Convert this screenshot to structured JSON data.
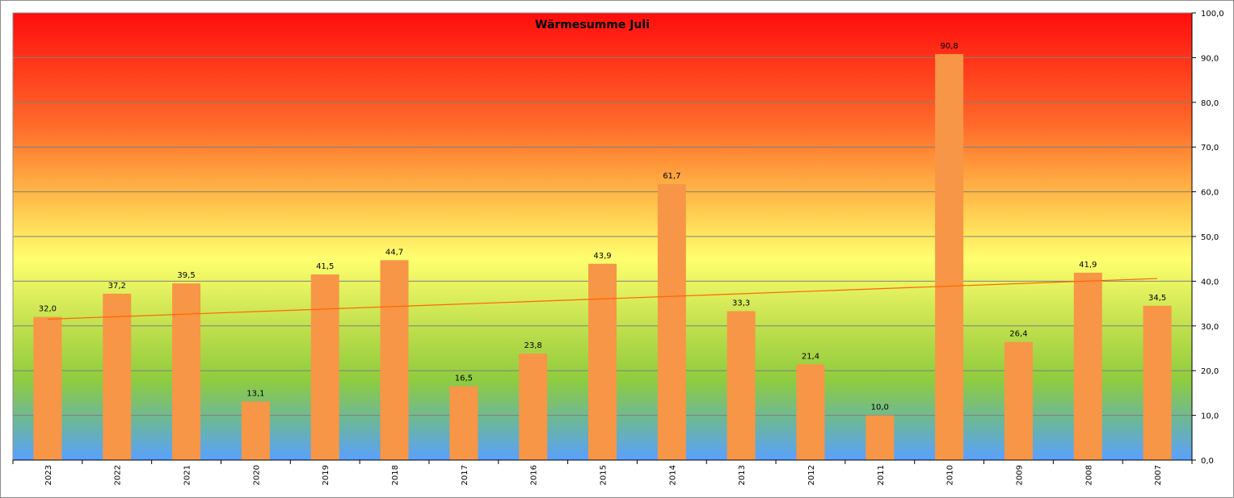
{
  "chart_data": {
    "type": "bar",
    "title": "Wärmesumme Juli",
    "categories": [
      "2023",
      "2022",
      "2021",
      "2020",
      "2019",
      "2018",
      "2017",
      "2016",
      "2015",
      "2014",
      "2013",
      "2012",
      "2011",
      "2010",
      "2009",
      "2008",
      "2007"
    ],
    "values": [
      32.0,
      37.2,
      39.5,
      13.1,
      41.5,
      44.7,
      16.5,
      23.8,
      43.9,
      61.7,
      33.3,
      21.4,
      10.0,
      90.8,
      26.4,
      41.9,
      34.5
    ],
    "value_labels": [
      "32,0",
      "37,2",
      "39,5",
      "13,1",
      "41,5",
      "44,7",
      "16,5",
      "23,8",
      "43,9",
      "61,7",
      "33,3",
      "21,4",
      "10,0",
      "90,8",
      "26,4",
      "41,9",
      "34,5"
    ],
    "ylim": [
      0,
      100
    ],
    "y_ticks": [
      "0,0",
      "10,0",
      "20,0",
      "30,0",
      "40,0",
      "50,0",
      "60,0",
      "70,0",
      "80,0",
      "90,0",
      "100,0"
    ],
    "y_axis_side": "right",
    "grid": true,
    "trendline": {
      "type": "linear",
      "start": 31.5,
      "end": 40.6
    },
    "colors": {
      "bar": "#f79646",
      "trendline": "#ff6600",
      "gradient_top": "#ff0d0d",
      "gradient_mid": "#ffff66",
      "gradient_low": "#92d050",
      "gradient_bottom": "#66a3ff",
      "gridline": "#7f7f7f"
    }
  }
}
